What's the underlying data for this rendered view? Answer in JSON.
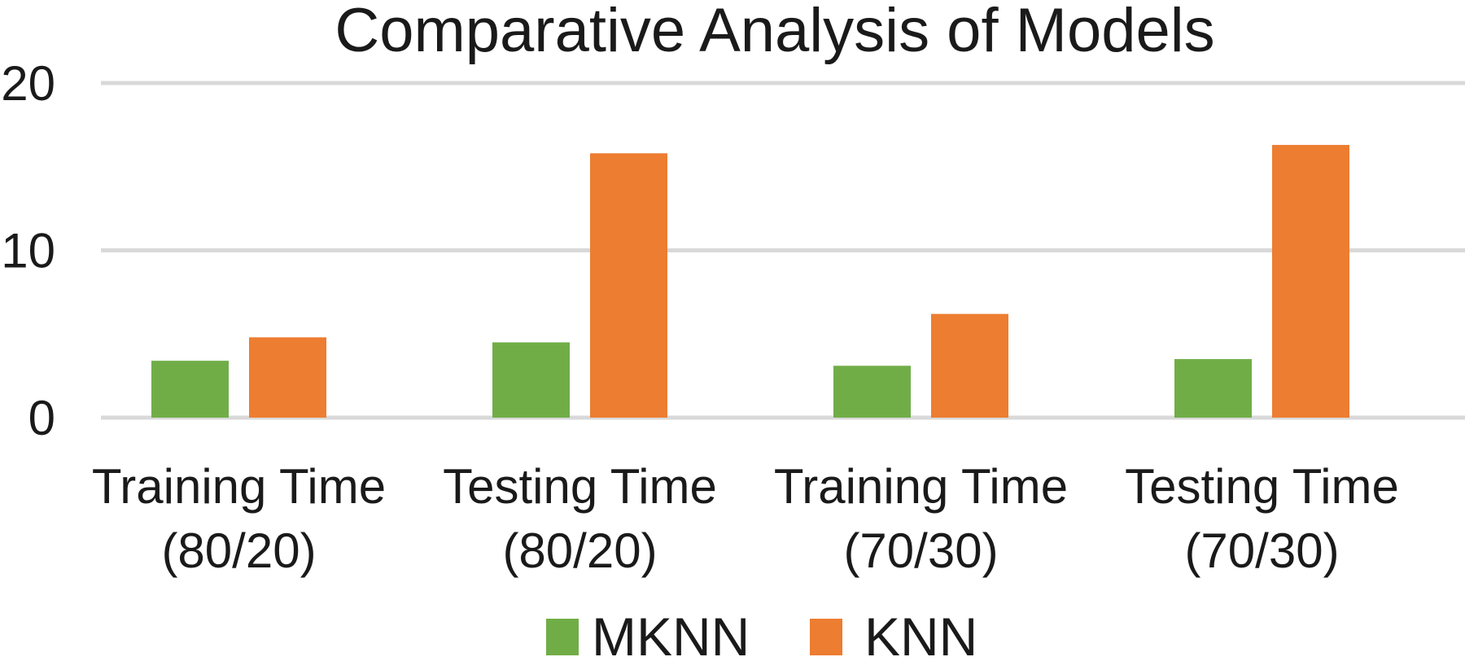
{
  "chart_data": {
    "type": "bar",
    "title": "Comparative Analysis of Models",
    "xlabel": "",
    "ylabel": "",
    "ylim": [
      0,
      20
    ],
    "yticks": [
      "0",
      "10",
      "20"
    ],
    "grid": true,
    "legend_position": "bottom",
    "categories": [
      [
        "Training Time",
        "(80/20)"
      ],
      [
        "Testing Time",
        "(80/20)"
      ],
      [
        "Training Time",
        "(70/30)"
      ],
      [
        "Testing Time",
        "(70/30)"
      ]
    ],
    "series": [
      {
        "name": "MKNN",
        "color": "#70ad47",
        "values": [
          3.4,
          4.5,
          3.1,
          3.5
        ]
      },
      {
        "name": "KNN",
        "color": "#ed7d31",
        "values": [
          4.8,
          15.8,
          6.2,
          16.3
        ]
      }
    ]
  }
}
